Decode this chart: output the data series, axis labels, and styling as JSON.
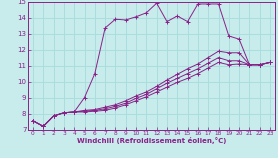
{
  "xlabel": "Windchill (Refroidissement éolien,°C)",
  "xlim": [
    -0.5,
    23.5
  ],
  "ylim": [
    7,
    15
  ],
  "xticks": [
    0,
    1,
    2,
    3,
    4,
    5,
    6,
    7,
    8,
    9,
    10,
    11,
    12,
    13,
    14,
    15,
    16,
    17,
    18,
    19,
    20,
    21,
    22,
    23
  ],
  "yticks": [
    7,
    8,
    9,
    10,
    11,
    12,
    13,
    14,
    15
  ],
  "bg_color": "#c8ecec",
  "line_color": "#882288",
  "grid_color": "#aadddd",
  "series": [
    [
      7.55,
      7.2,
      7.85,
      8.05,
      8.1,
      9.0,
      10.5,
      13.35,
      13.9,
      13.85,
      14.05,
      14.3,
      14.9,
      13.75,
      14.1,
      13.75,
      14.85,
      14.85,
      14.85,
      12.85,
      12.65,
      11.05,
      11.05,
      11.2
    ],
    [
      7.55,
      7.2,
      7.85,
      8.05,
      8.1,
      8.2,
      8.25,
      8.4,
      8.55,
      8.8,
      9.1,
      9.35,
      9.7,
      10.1,
      10.45,
      10.8,
      11.1,
      11.5,
      11.9,
      11.8,
      11.8,
      11.05,
      11.05,
      11.2
    ],
    [
      7.55,
      7.2,
      7.85,
      8.05,
      8.1,
      8.15,
      8.2,
      8.3,
      8.45,
      8.65,
      8.95,
      9.2,
      9.55,
      9.9,
      10.2,
      10.5,
      10.8,
      11.15,
      11.5,
      11.3,
      11.3,
      11.05,
      11.05,
      11.2
    ],
    [
      7.55,
      7.2,
      7.85,
      8.05,
      8.1,
      8.1,
      8.15,
      8.2,
      8.35,
      8.55,
      8.8,
      9.05,
      9.35,
      9.65,
      9.95,
      10.2,
      10.5,
      10.85,
      11.2,
      11.05,
      11.1,
      11.05,
      11.05,
      11.2
    ]
  ]
}
